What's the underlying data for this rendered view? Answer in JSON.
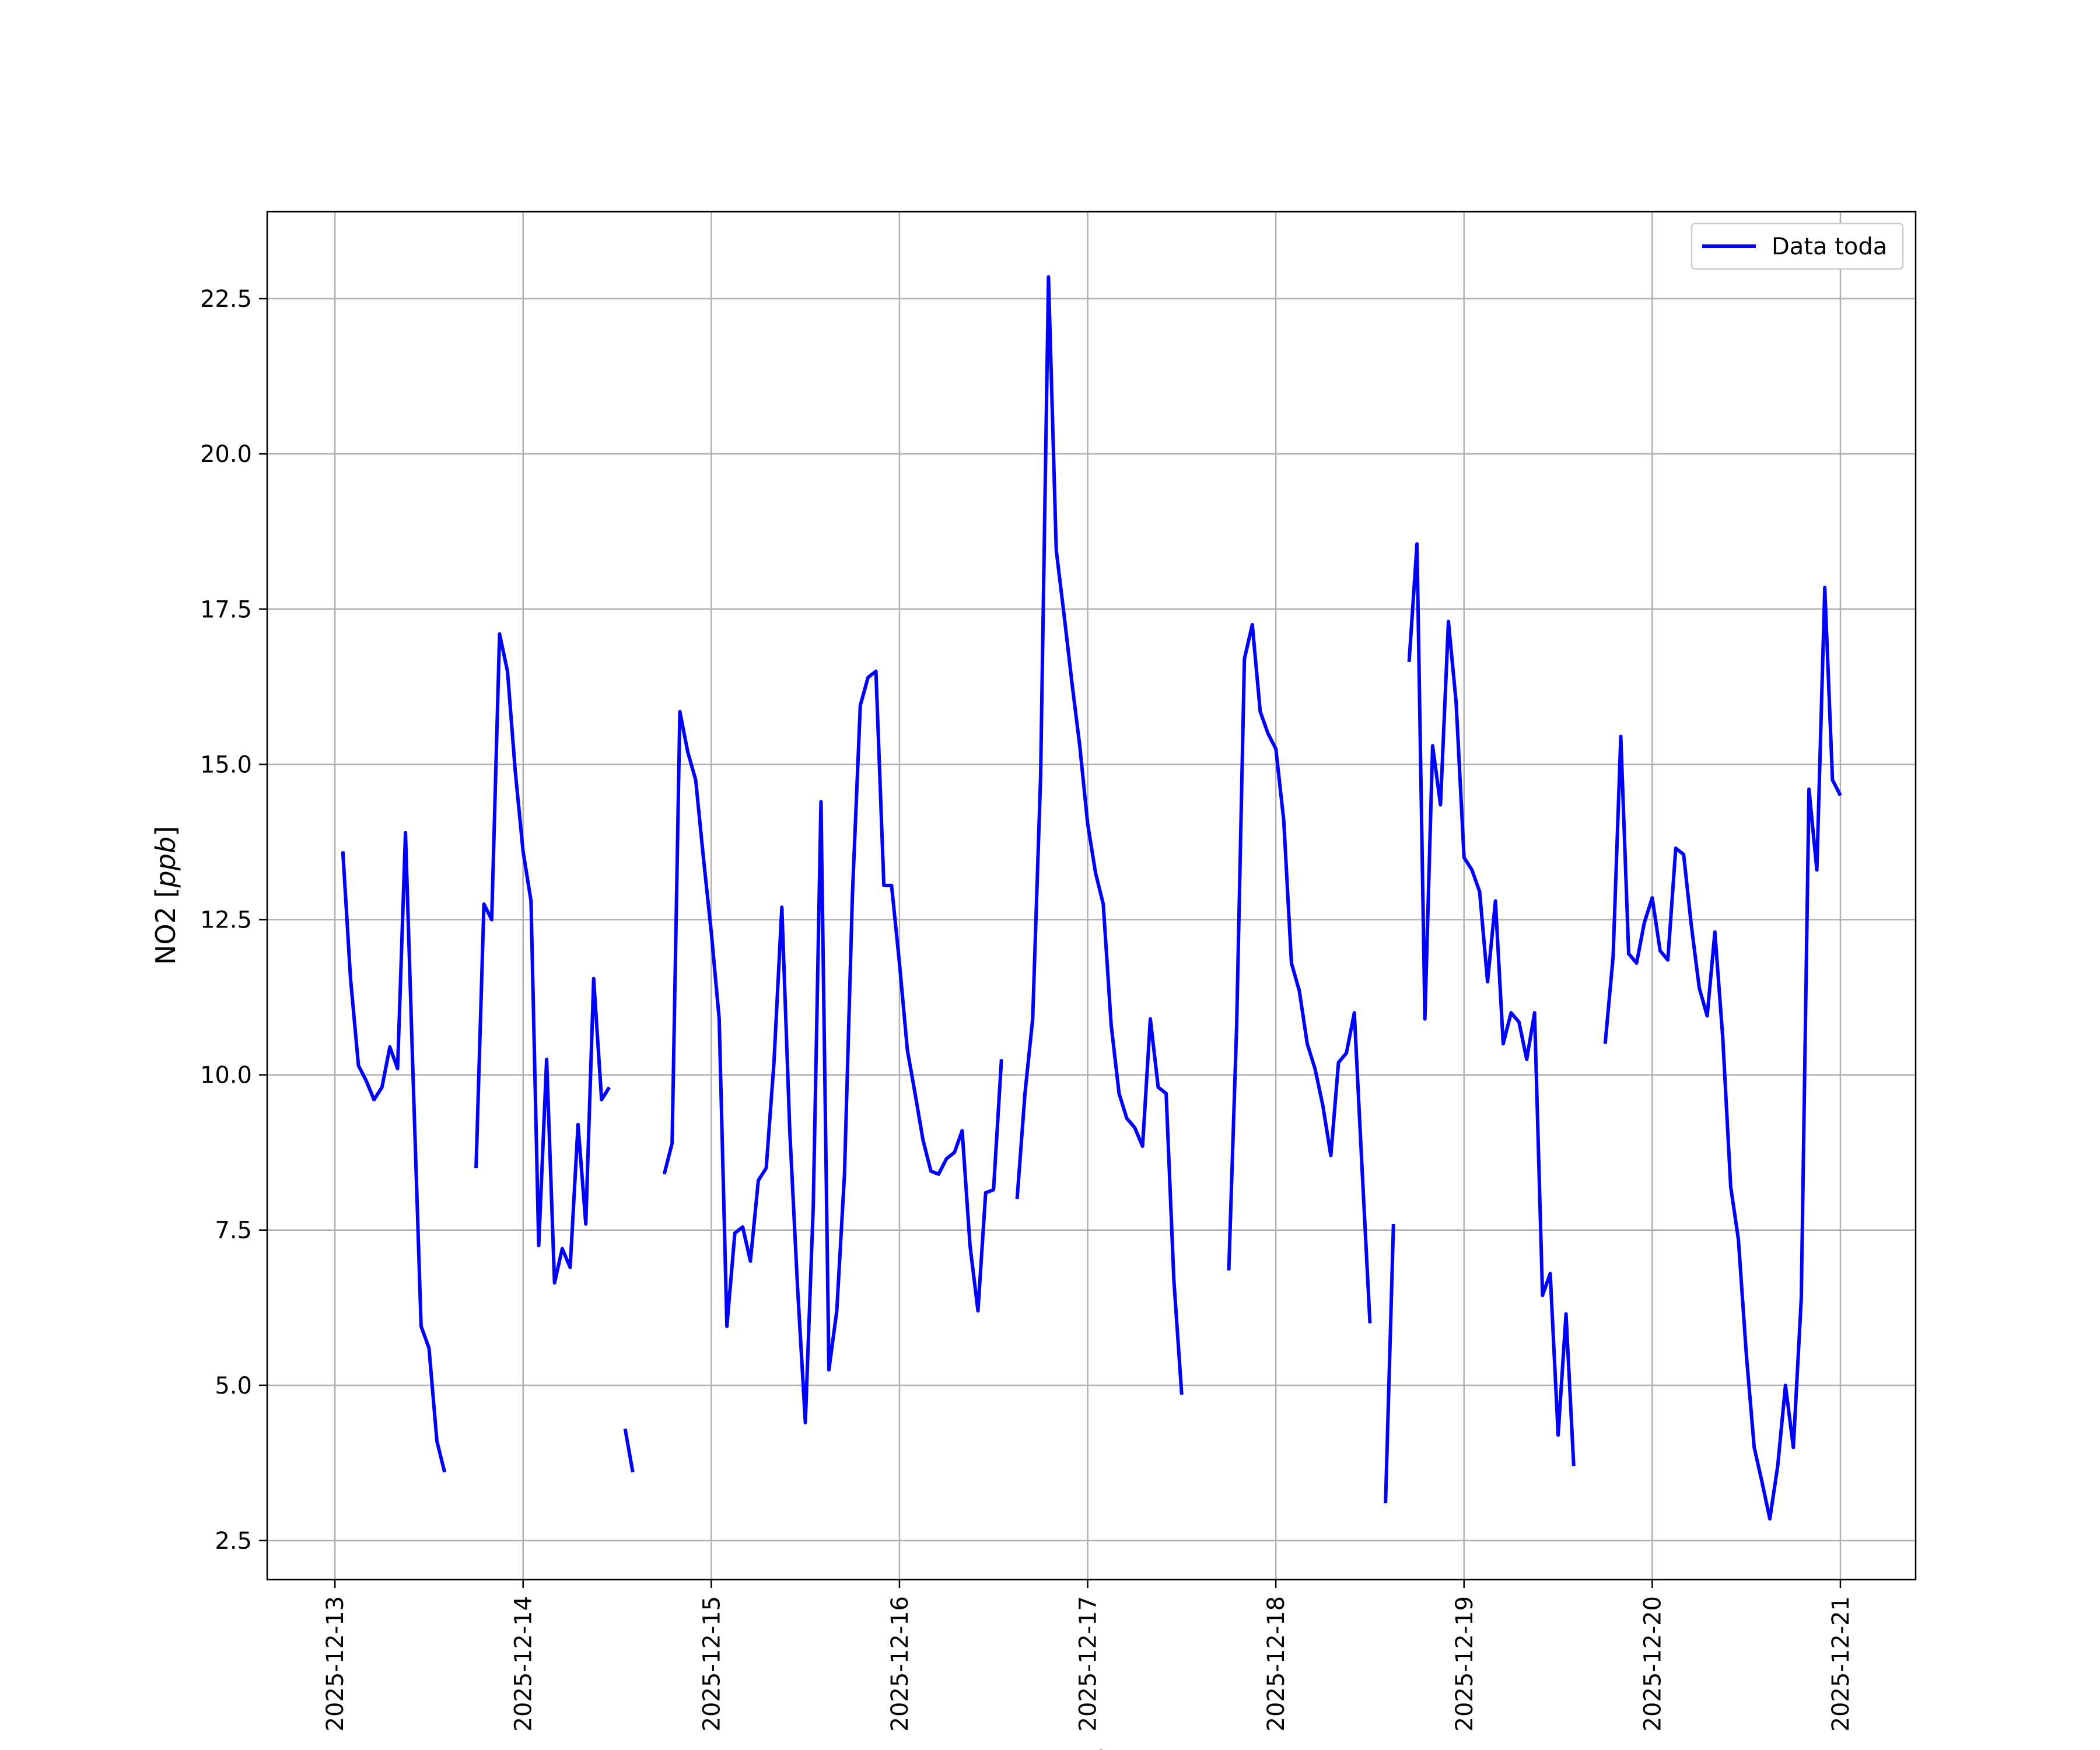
{
  "chart_data": {
    "type": "line",
    "xlabel": "Fecha",
    "ylabel": "NO2 [ppb]",
    "ylabel_base": "NO2 [",
    "ylabel_unit": "ppb",
    "ylabel_close": "]",
    "x_ticks": [
      "2025-12-13",
      "2025-12-14",
      "2025-12-15",
      "2025-12-16",
      "2025-12-17",
      "2025-12-18",
      "2025-12-19",
      "2025-12-20",
      "2025-12-21"
    ],
    "x_tick_values": [
      0,
      1,
      2,
      3,
      4,
      5,
      6,
      7,
      8
    ],
    "xlim": [
      -0.36,
      8.4
    ],
    "y_ticks": [
      "2.5",
      "5.0",
      "7.5",
      "10.0",
      "12.5",
      "15.0",
      "17.5",
      "20.0",
      "22.5"
    ],
    "y_tick_values": [
      2.5,
      5.0,
      7.5,
      10.0,
      12.5,
      15.0,
      17.5,
      20.0,
      22.5
    ],
    "ylim": [
      1.87,
      23.9
    ],
    "grid": true,
    "legend": {
      "placement": "top-right",
      "entries": [
        {
          "name": "Data toda",
          "color": "#0000ff"
        }
      ]
    },
    "series": [
      {
        "name": "Data toda",
        "color": "#0000ff",
        "segments": [
          [
            [
              0.042,
              13.6
            ],
            [
              0.083,
              11.55
            ],
            [
              0.125,
              10.15
            ],
            [
              0.167,
              9.9
            ],
            [
              0.208,
              9.6
            ],
            [
              0.25,
              9.8
            ],
            [
              0.292,
              10.45
            ],
            [
              0.333,
              10.1
            ],
            [
              0.375,
              13.9
            ],
            [
              0.417,
              9.8
            ],
            [
              0.458,
              5.95
            ],
            [
              0.5,
              5.6
            ],
            [
              0.542,
              4.1
            ],
            [
              0.583,
              3.6
            ]
          ],
          [
            [
              0.75,
              8.5
            ],
            [
              0.792,
              12.75
            ],
            [
              0.833,
              12.5
            ],
            [
              0.875,
              17.1
            ],
            [
              0.917,
              16.5
            ],
            [
              0.958,
              14.9
            ],
            [
              1.0,
              13.6
            ],
            [
              1.042,
              12.8
            ],
            [
              1.083,
              7.25
            ],
            [
              1.125,
              10.25
            ],
            [
              1.167,
              6.65
            ],
            [
              1.208,
              7.2
            ],
            [
              1.25,
              6.9
            ],
            [
              1.292,
              9.2
            ],
            [
              1.333,
              7.6
            ],
            [
              1.375,
              11.55
            ],
            [
              1.417,
              9.6
            ],
            [
              1.458,
              9.8
            ]
          ],
          [
            [
              1.542,
              4.3
            ],
            [
              1.583,
              3.6
            ]
          ],
          [
            [
              1.75,
              8.4
            ],
            [
              1.792,
              8.9
            ],
            [
              1.833,
              15.85
            ],
            [
              1.875,
              15.2
            ],
            [
              1.917,
              14.75
            ],
            [
              1.958,
              13.5
            ],
            [
              2.0,
              12.3
            ],
            [
              2.042,
              10.9
            ],
            [
              2.083,
              5.95
            ],
            [
              2.125,
              7.45
            ],
            [
              2.167,
              7.55
            ],
            [
              2.208,
              7.0
            ],
            [
              2.25,
              8.3
            ],
            [
              2.292,
              8.5
            ],
            [
              2.333,
              10.2
            ],
            [
              2.375,
              12.7
            ],
            [
              2.417,
              9.1
            ],
            [
              2.458,
              6.6
            ],
            [
              2.5,
              4.4
            ],
            [
              2.542,
              7.9
            ],
            [
              2.583,
              14.4
            ],
            [
              2.625,
              5.25
            ],
            [
              2.667,
              6.2
            ],
            [
              2.708,
              8.4
            ],
            [
              2.75,
              12.9
            ],
            [
              2.792,
              15.95
            ],
            [
              2.833,
              16.4
            ],
            [
              2.875,
              16.5
            ],
            [
              2.917,
              13.05
            ],
            [
              2.958,
              13.05
            ],
            [
              3.0,
              11.8
            ],
            [
              3.042,
              10.4
            ],
            [
              3.083,
              9.7
            ],
            [
              3.125,
              8.95
            ],
            [
              3.167,
              8.45
            ],
            [
              3.208,
              8.4
            ],
            [
              3.25,
              8.65
            ],
            [
              3.292,
              8.75
            ],
            [
              3.333,
              9.1
            ],
            [
              3.375,
              7.25
            ],
            [
              3.417,
              6.2
            ],
            [
              3.458,
              8.1
            ],
            [
              3.5,
              8.15
            ],
            [
              3.542,
              10.25
            ]
          ],
          [
            [
              3.625,
              8.0
            ],
            [
              3.667,
              9.7
            ],
            [
              3.708,
              10.9
            ],
            [
              3.75,
              14.8
            ],
            [
              3.792,
              22.85
            ],
            [
              3.833,
              18.45
            ],
            [
              3.875,
              17.4
            ],
            [
              3.917,
              16.3
            ],
            [
              3.958,
              15.3
            ],
            [
              4.0,
              14.05
            ],
            [
              4.042,
              13.25
            ],
            [
              4.083,
              12.75
            ],
            [
              4.125,
              10.8
            ],
            [
              4.167,
              9.7
            ],
            [
              4.208,
              9.3
            ],
            [
              4.25,
              9.15
            ],
            [
              4.292,
              8.85
            ],
            [
              4.333,
              10.9
            ],
            [
              4.375,
              9.8
            ],
            [
              4.417,
              9.7
            ],
            [
              4.458,
              6.7
            ],
            [
              4.5,
              4.85
            ]
          ],
          [
            [
              4.75,
              6.85
            ],
            [
              4.792,
              10.8
            ],
            [
              4.833,
              16.7
            ],
            [
              4.875,
              17.25
            ],
            [
              4.917,
              15.85
            ],
            [
              4.958,
              15.5
            ],
            [
              5.0,
              15.25
            ],
            [
              5.042,
              14.1
            ],
            [
              5.083,
              11.8
            ],
            [
              5.125,
              11.35
            ],
            [
              5.167,
              10.5
            ],
            [
              5.208,
              10.1
            ],
            [
              5.25,
              9.5
            ],
            [
              5.292,
              8.7
            ],
            [
              5.333,
              10.2
            ],
            [
              5.375,
              10.35
            ],
            [
              5.417,
              11.0
            ],
            [
              5.458,
              8.5
            ],
            [
              5.5,
              6.0
            ]
          ],
          [
            [
              5.583,
              3.1
            ],
            [
              5.625,
              7.6
            ]
          ],
          [
            [
              5.708,
              16.65
            ],
            [
              5.75,
              18.55
            ],
            [
              5.792,
              10.9
            ],
            [
              5.833,
              15.3
            ],
            [
              5.875,
              14.35
            ],
            [
              5.917,
              17.3
            ],
            [
              5.958,
              16.0
            ],
            [
              6.0,
              13.5
            ],
            [
              6.042,
              13.3
            ],
            [
              6.083,
              12.95
            ],
            [
              6.125,
              11.5
            ],
            [
              6.167,
              12.8
            ],
            [
              6.208,
              10.5
            ],
            [
              6.25,
              11.0
            ],
            [
              6.292,
              10.85
            ],
            [
              6.333,
              10.25
            ],
            [
              6.375,
              11.0
            ],
            [
              6.417,
              6.45
            ],
            [
              6.458,
              6.8
            ],
            [
              6.5,
              4.2
            ],
            [
              6.542,
              6.15
            ],
            [
              6.583,
              3.7
            ]
          ],
          [
            [
              6.75,
              10.5
            ],
            [
              6.792,
              11.9
            ],
            [
              6.833,
              15.45
            ],
            [
              6.875,
              11.95
            ],
            [
              6.917,
              11.8
            ],
            [
              6.958,
              12.45
            ],
            [
              7.0,
              12.85
            ],
            [
              7.042,
              12.0
            ],
            [
              7.083,
              11.85
            ],
            [
              7.125,
              13.65
            ],
            [
              7.167,
              13.55
            ],
            [
              7.208,
              12.4
            ],
            [
              7.25,
              11.4
            ],
            [
              7.292,
              10.95
            ],
            [
              7.333,
              12.3
            ],
            [
              7.375,
              10.6
            ],
            [
              7.417,
              8.2
            ],
            [
              7.458,
              7.35
            ],
            [
              7.5,
              5.5
            ],
            [
              7.542,
              4.0
            ],
            [
              7.583,
              3.45
            ],
            [
              7.625,
              2.85
            ],
            [
              7.667,
              3.7
            ],
            [
              7.708,
              5.0
            ],
            [
              7.75,
              4.0
            ],
            [
              7.792,
              6.4
            ],
            [
              7.833,
              14.6
            ],
            [
              7.875,
              13.3
            ],
            [
              7.917,
              17.85
            ],
            [
              7.958,
              14.75
            ],
            [
              8.0,
              14.5
            ]
          ]
        ]
      }
    ]
  }
}
